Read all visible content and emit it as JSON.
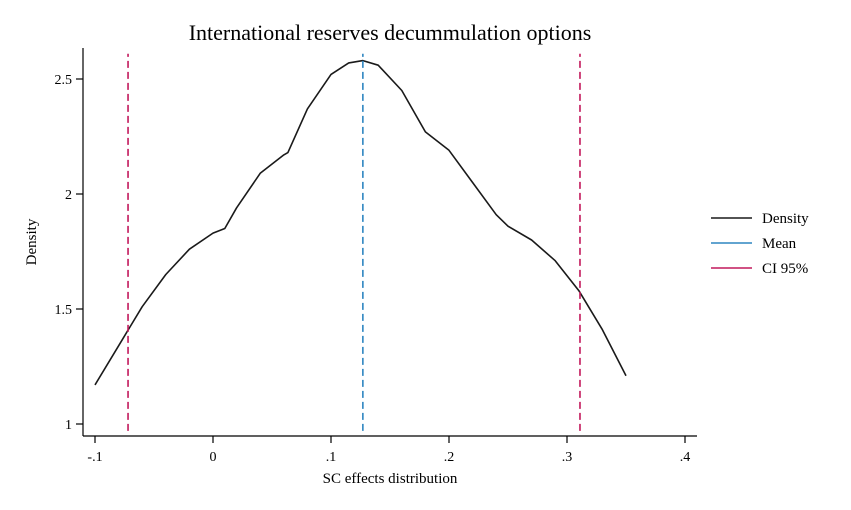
{
  "chart_data": {
    "type": "line",
    "title": "International reserves decummulation options",
    "xlabel": "SC effects distribution",
    "ylabel": "Density",
    "xlim": [
      -0.1,
      0.4
    ],
    "ylim": [
      1,
      2.5
    ],
    "xticks": [
      {
        "value": -0.1,
        "label": "-.1"
      },
      {
        "value": 0,
        "label": "0"
      },
      {
        "value": 0.1,
        "label": ".1"
      },
      {
        "value": 0.2,
        "label": ".2"
      },
      {
        "value": 0.3,
        "label": ".3"
      },
      {
        "value": 0.4,
        "label": ".4"
      }
    ],
    "yticks": [
      {
        "value": 1,
        "label": "1"
      },
      {
        "value": 1.5,
        "label": "1.5"
      },
      {
        "value": 2,
        "label": "2"
      },
      {
        "value": 2.5,
        "label": "2.5"
      }
    ],
    "grid": false,
    "legend_position": "right",
    "series": [
      {
        "name": "Density",
        "color": "#1a1a1a",
        "x": [
          -0.1,
          -0.08,
          -0.06,
          -0.04,
          -0.02,
          0.0,
          0.01,
          0.02,
          0.04,
          0.06,
          0.0635,
          0.08,
          0.1,
          0.115,
          0.127,
          0.14,
          0.16,
          0.18,
          0.2,
          0.22,
          0.24,
          0.25,
          0.27,
          0.29,
          0.31,
          0.33,
          0.35
        ],
        "y": [
          1.17,
          1.34,
          1.51,
          1.65,
          1.76,
          1.83,
          1.85,
          1.94,
          2.09,
          2.17,
          2.18,
          2.37,
          2.52,
          2.57,
          2.58,
          2.56,
          2.45,
          2.27,
          2.19,
          2.05,
          1.91,
          1.86,
          1.8,
          1.71,
          1.58,
          1.41,
          1.21
        ]
      },
      {
        "name": "Mean",
        "color": "#2e86c1",
        "style": "dashed",
        "x": [
          0.127,
          0.127
        ],
        "y": [
          0.97,
          2.61
        ]
      },
      {
        "name": "CI 95%",
        "color": "#c2185b",
        "style": "dashed",
        "x": [
          -0.072,
          -0.072,
          0.311,
          0.311
        ],
        "y": [
          0.97,
          2.61,
          0.97,
          2.61
        ]
      }
    ]
  }
}
